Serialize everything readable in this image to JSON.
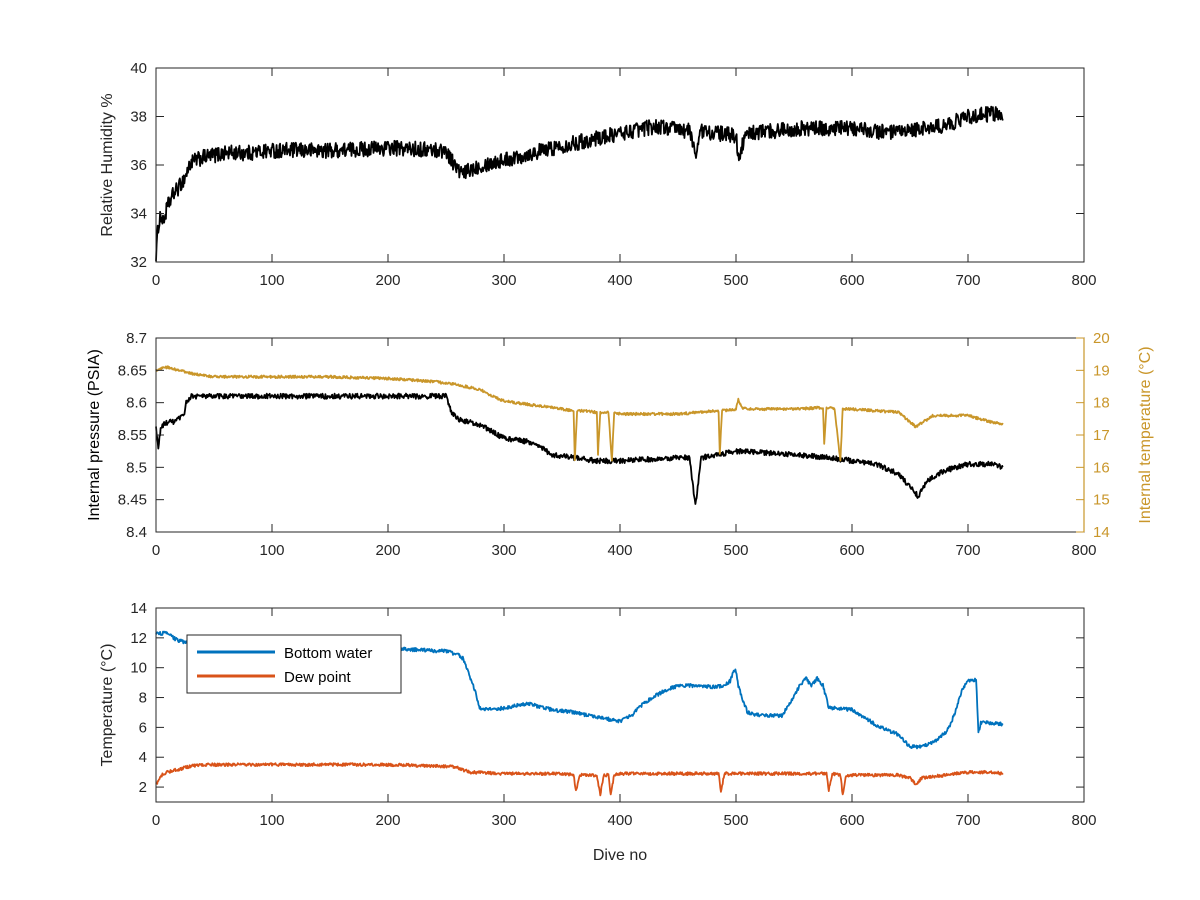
{
  "figure": {
    "xlabel": "Dive no"
  },
  "chart_data": [
    {
      "type": "line",
      "xlabel": "",
      "ylabel": "Relative Humidity %",
      "xlim": [
        0,
        800
      ],
      "ylim": [
        32,
        40
      ],
      "xticks": [
        "0",
        "100",
        "200",
        "300",
        "400",
        "500",
        "600",
        "700",
        "800"
      ],
      "yticks": [
        "32",
        "34",
        "36",
        "38",
        "40"
      ],
      "grid": false,
      "series": [
        {
          "color": "#000000",
          "noise": 0.32,
          "x": [
            0,
            2,
            4,
            6,
            10,
            15,
            20,
            25,
            30,
            40,
            60,
            80,
            100,
            150,
            200,
            250,
            255,
            260,
            265,
            270,
            280,
            300,
            350,
            400,
            430,
            460,
            465,
            470,
            500,
            502,
            510,
            550,
            600,
            640,
            660,
            680,
            700,
            720,
            730
          ],
          "y": [
            32.3,
            33.5,
            34.0,
            33.6,
            34.3,
            34.8,
            35.1,
            35.5,
            36.1,
            36.3,
            36.5,
            36.5,
            36.6,
            36.6,
            36.7,
            36.6,
            36.2,
            35.8,
            35.6,
            35.8,
            36.0,
            36.2,
            36.8,
            37.3,
            37.6,
            37.4,
            36.5,
            37.4,
            37.2,
            36.4,
            37.3,
            37.5,
            37.5,
            37.3,
            37.5,
            37.6,
            38.0,
            38.1,
            38.1
          ]
        }
      ]
    },
    {
      "type": "line",
      "xlabel": "",
      "ylabel": "Internal pressure (PSIA)",
      "y2label": "Internal temperature (°C)",
      "xlim": [
        0,
        800
      ],
      "ylim": [
        8.4,
        8.7
      ],
      "y2lim": [
        14,
        20
      ],
      "xticks": [
        "0",
        "100",
        "200",
        "300",
        "400",
        "500",
        "600",
        "700",
        "800"
      ],
      "yticks": [
        "8.4",
        "8.45",
        "8.5",
        "8.55",
        "8.6",
        "8.65",
        "8.7"
      ],
      "y2ticks": [
        "14",
        "15",
        "16",
        "17",
        "18",
        "19",
        "20"
      ],
      "grid": false,
      "series": [
        {
          "axis": "left",
          "color": "#000000",
          "noise": 0.004,
          "x": [
            0,
            2,
            4,
            6,
            10,
            15,
            20,
            24,
            26,
            30,
            50,
            100,
            150,
            200,
            250,
            255,
            260,
            280,
            300,
            320,
            330,
            340,
            360,
            380,
            400,
            450,
            460,
            465,
            470,
            500,
            550,
            580,
            600,
            620,
            640,
            650,
            657,
            665,
            680,
            700,
            720,
            730
          ],
          "y": [
            8.56,
            8.53,
            8.56,
            8.565,
            8.57,
            8.57,
            8.575,
            8.58,
            8.6,
            8.61,
            8.61,
            8.61,
            8.61,
            8.61,
            8.61,
            8.585,
            8.575,
            8.565,
            8.545,
            8.54,
            8.535,
            8.52,
            8.515,
            8.51,
            8.51,
            8.515,
            8.515,
            8.44,
            8.515,
            8.525,
            8.52,
            8.515,
            8.51,
            8.505,
            8.49,
            8.47,
            8.455,
            8.48,
            8.495,
            8.505,
            8.505,
            8.5
          ]
        },
        {
          "axis": "right",
          "color": "#C9962A",
          "noise": 0.04,
          "x": [
            0,
            5,
            10,
            15,
            20,
            30,
            40,
            50,
            100,
            150,
            200,
            240,
            260,
            280,
            290,
            300,
            320,
            340,
            350,
            360,
            361,
            363,
            370,
            380,
            381,
            383,
            390,
            393,
            395,
            400,
            450,
            485,
            486,
            488,
            500,
            502,
            505,
            510,
            550,
            575,
            576,
            578,
            585,
            590,
            592,
            600,
            620,
            640,
            650,
            655,
            670,
            700,
            720,
            730
          ],
          "y": [
            19.0,
            19.05,
            19.1,
            19.05,
            19.0,
            18.9,
            18.85,
            18.8,
            18.8,
            18.8,
            18.75,
            18.65,
            18.55,
            18.4,
            18.2,
            18.05,
            17.95,
            17.85,
            17.8,
            17.75,
            16.2,
            17.75,
            17.75,
            17.7,
            16.4,
            17.7,
            17.7,
            16.2,
            17.7,
            17.65,
            17.65,
            17.75,
            16.4,
            17.75,
            17.8,
            18.1,
            17.85,
            17.8,
            17.8,
            17.85,
            16.7,
            17.85,
            17.8,
            16.2,
            17.8,
            17.8,
            17.75,
            17.7,
            17.4,
            17.25,
            17.6,
            17.6,
            17.4,
            17.35
          ]
        }
      ]
    },
    {
      "type": "line",
      "xlabel": "Dive no",
      "ylabel": "Temperature (°C)",
      "xlim": [
        0,
        800
      ],
      "ylim": [
        1,
        14
      ],
      "xticks": [
        "0",
        "100",
        "200",
        "300",
        "400",
        "500",
        "600",
        "700",
        "800"
      ],
      "yticks": [
        "2",
        "4",
        "6",
        "8",
        "10",
        "12",
        "14"
      ],
      "grid": false,
      "legend": "top-left",
      "series": [
        {
          "name": "Bottom water",
          "color": "#0072BD",
          "noise": 0.12,
          "x": [
            0,
            10,
            15,
            20,
            30,
            50,
            100,
            150,
            200,
            250,
            260,
            265,
            270,
            275,
            278,
            280,
            290,
            300,
            320,
            340,
            360,
            380,
            400,
            410,
            420,
            430,
            440,
            450,
            460,
            470,
            480,
            490,
            495,
            498,
            500,
            502,
            505,
            510,
            520,
            540,
            555,
            560,
            565,
            570,
            575,
            580,
            600,
            610,
            620,
            640,
            650,
            660,
            670,
            680,
            685,
            690,
            695,
            700,
            705,
            707,
            709,
            711,
            720,
            730
          ],
          "y": [
            12.3,
            12.3,
            12.0,
            11.8,
            11.6,
            11.6,
            11.5,
            11.4,
            11.3,
            11.1,
            10.9,
            10.6,
            9.5,
            8.5,
            7.5,
            7.2,
            7.2,
            7.3,
            7.6,
            7.2,
            7.0,
            6.7,
            6.4,
            6.8,
            7.6,
            8.1,
            8.5,
            8.8,
            8.8,
            8.8,
            8.7,
            8.8,
            9.1,
            9.8,
            9.8,
            8.8,
            8.0,
            7.0,
            6.8,
            6.8,
            8.8,
            9.3,
            8.8,
            9.3,
            8.8,
            7.3,
            7.2,
            6.7,
            6.2,
            5.5,
            4.7,
            4.7,
            5.0,
            5.6,
            6.2,
            7.3,
            8.5,
            9.2,
            9.1,
            9.3,
            5.6,
            6.3,
            6.3,
            6.2
          ]
        },
        {
          "name": "Dew point",
          "color": "#D95319",
          "noise": 0.1,
          "x": [
            0,
            5,
            10,
            20,
            30,
            40,
            50,
            100,
            150,
            200,
            250,
            260,
            270,
            300,
            350,
            360,
            362,
            365,
            380,
            383,
            386,
            390,
            392,
            395,
            400,
            450,
            485,
            487,
            490,
            500,
            550,
            578,
            580,
            583,
            590,
            592,
            595,
            600,
            640,
            650,
            655,
            660,
            680,
            700,
            720,
            730
          ],
          "y": [
            2.2,
            2.8,
            3.0,
            3.2,
            3.4,
            3.5,
            3.5,
            3.5,
            3.5,
            3.5,
            3.4,
            3.3,
            3.0,
            2.9,
            2.9,
            2.8,
            1.7,
            2.8,
            2.8,
            1.5,
            2.8,
            2.8,
            1.5,
            2.8,
            2.9,
            2.9,
            2.9,
            1.7,
            2.9,
            2.9,
            2.9,
            2.9,
            1.8,
            2.9,
            2.8,
            1.5,
            2.8,
            2.8,
            2.8,
            2.6,
            2.2,
            2.6,
            2.8,
            3.0,
            3.0,
            2.9
          ]
        }
      ]
    }
  ]
}
